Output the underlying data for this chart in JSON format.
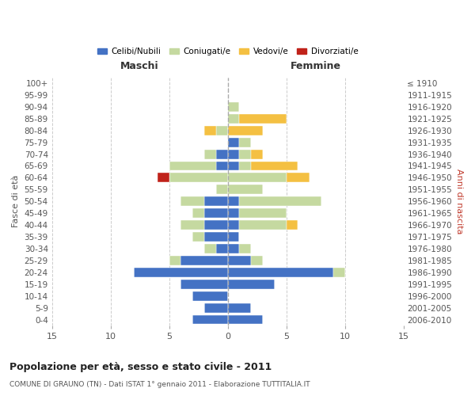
{
  "age_groups": [
    "0-4",
    "5-9",
    "10-14",
    "15-19",
    "20-24",
    "25-29",
    "30-34",
    "35-39",
    "40-44",
    "45-49",
    "50-54",
    "55-59",
    "60-64",
    "65-69",
    "70-74",
    "75-79",
    "80-84",
    "85-89",
    "90-94",
    "95-99",
    "100+"
  ],
  "birth_years": [
    "2006-2010",
    "2001-2005",
    "1996-2000",
    "1991-1995",
    "1986-1990",
    "1981-1985",
    "1976-1980",
    "1971-1975",
    "1966-1970",
    "1961-1965",
    "1956-1960",
    "1951-1955",
    "1946-1950",
    "1941-1945",
    "1936-1940",
    "1931-1935",
    "1926-1930",
    "1921-1925",
    "1916-1920",
    "1911-1915",
    "≤ 1910"
  ],
  "male_celibi": [
    3,
    2,
    3,
    4,
    8,
    4,
    1,
    2,
    2,
    2,
    2,
    0,
    0,
    1,
    1,
    0,
    0,
    0,
    0,
    0,
    0
  ],
  "male_coniugati": [
    0,
    0,
    0,
    0,
    0,
    1,
    1,
    1,
    2,
    1,
    2,
    1,
    5,
    4,
    1,
    0,
    1,
    0,
    0,
    0,
    0
  ],
  "male_vedovi": [
    0,
    0,
    0,
    0,
    0,
    0,
    0,
    0,
    0,
    0,
    0,
    0,
    0,
    0,
    0,
    0,
    1,
    0,
    0,
    0,
    0
  ],
  "male_divorziati": [
    0,
    0,
    0,
    0,
    0,
    0,
    0,
    0,
    0,
    0,
    0,
    0,
    1,
    0,
    0,
    0,
    0,
    0,
    0,
    0,
    0
  ],
  "female_celibi": [
    3,
    2,
    0,
    4,
    9,
    2,
    1,
    1,
    1,
    1,
    1,
    0,
    0,
    1,
    1,
    1,
    0,
    0,
    0,
    0,
    0
  ],
  "female_coniugati": [
    0,
    0,
    0,
    0,
    1,
    1,
    1,
    0,
    4,
    4,
    7,
    3,
    5,
    1,
    1,
    1,
    0,
    1,
    1,
    0,
    0
  ],
  "female_vedovi": [
    0,
    0,
    0,
    0,
    0,
    0,
    0,
    0,
    1,
    0,
    0,
    0,
    2,
    4,
    1,
    0,
    3,
    4,
    0,
    0,
    0
  ],
  "female_divorziati": [
    0,
    0,
    0,
    0,
    0,
    0,
    0,
    0,
    0,
    0,
    0,
    0,
    0,
    0,
    0,
    0,
    0,
    0,
    0,
    0,
    0
  ],
  "color_celibi": "#4472c4",
  "color_coniugati": "#c5d9a0",
  "color_vedovi": "#f4c042",
  "color_divorziati": "#c0221a",
  "color_grid": "#cccccc",
  "title": "Popolazione per età, sesso e stato civile - 2011",
  "subtitle": "COMUNE DI GRAUNO (TN) - Dati ISTAT 1° gennaio 2011 - Elaborazione TUTTITALIA.IT",
  "ylabel_left": "Fasce di età",
  "ylabel_right": "Anni di nascita",
  "xlabel_maschi": "Maschi",
  "xlabel_femmine": "Femmine",
  "xlim": 15,
  "bar_height": 0.8
}
